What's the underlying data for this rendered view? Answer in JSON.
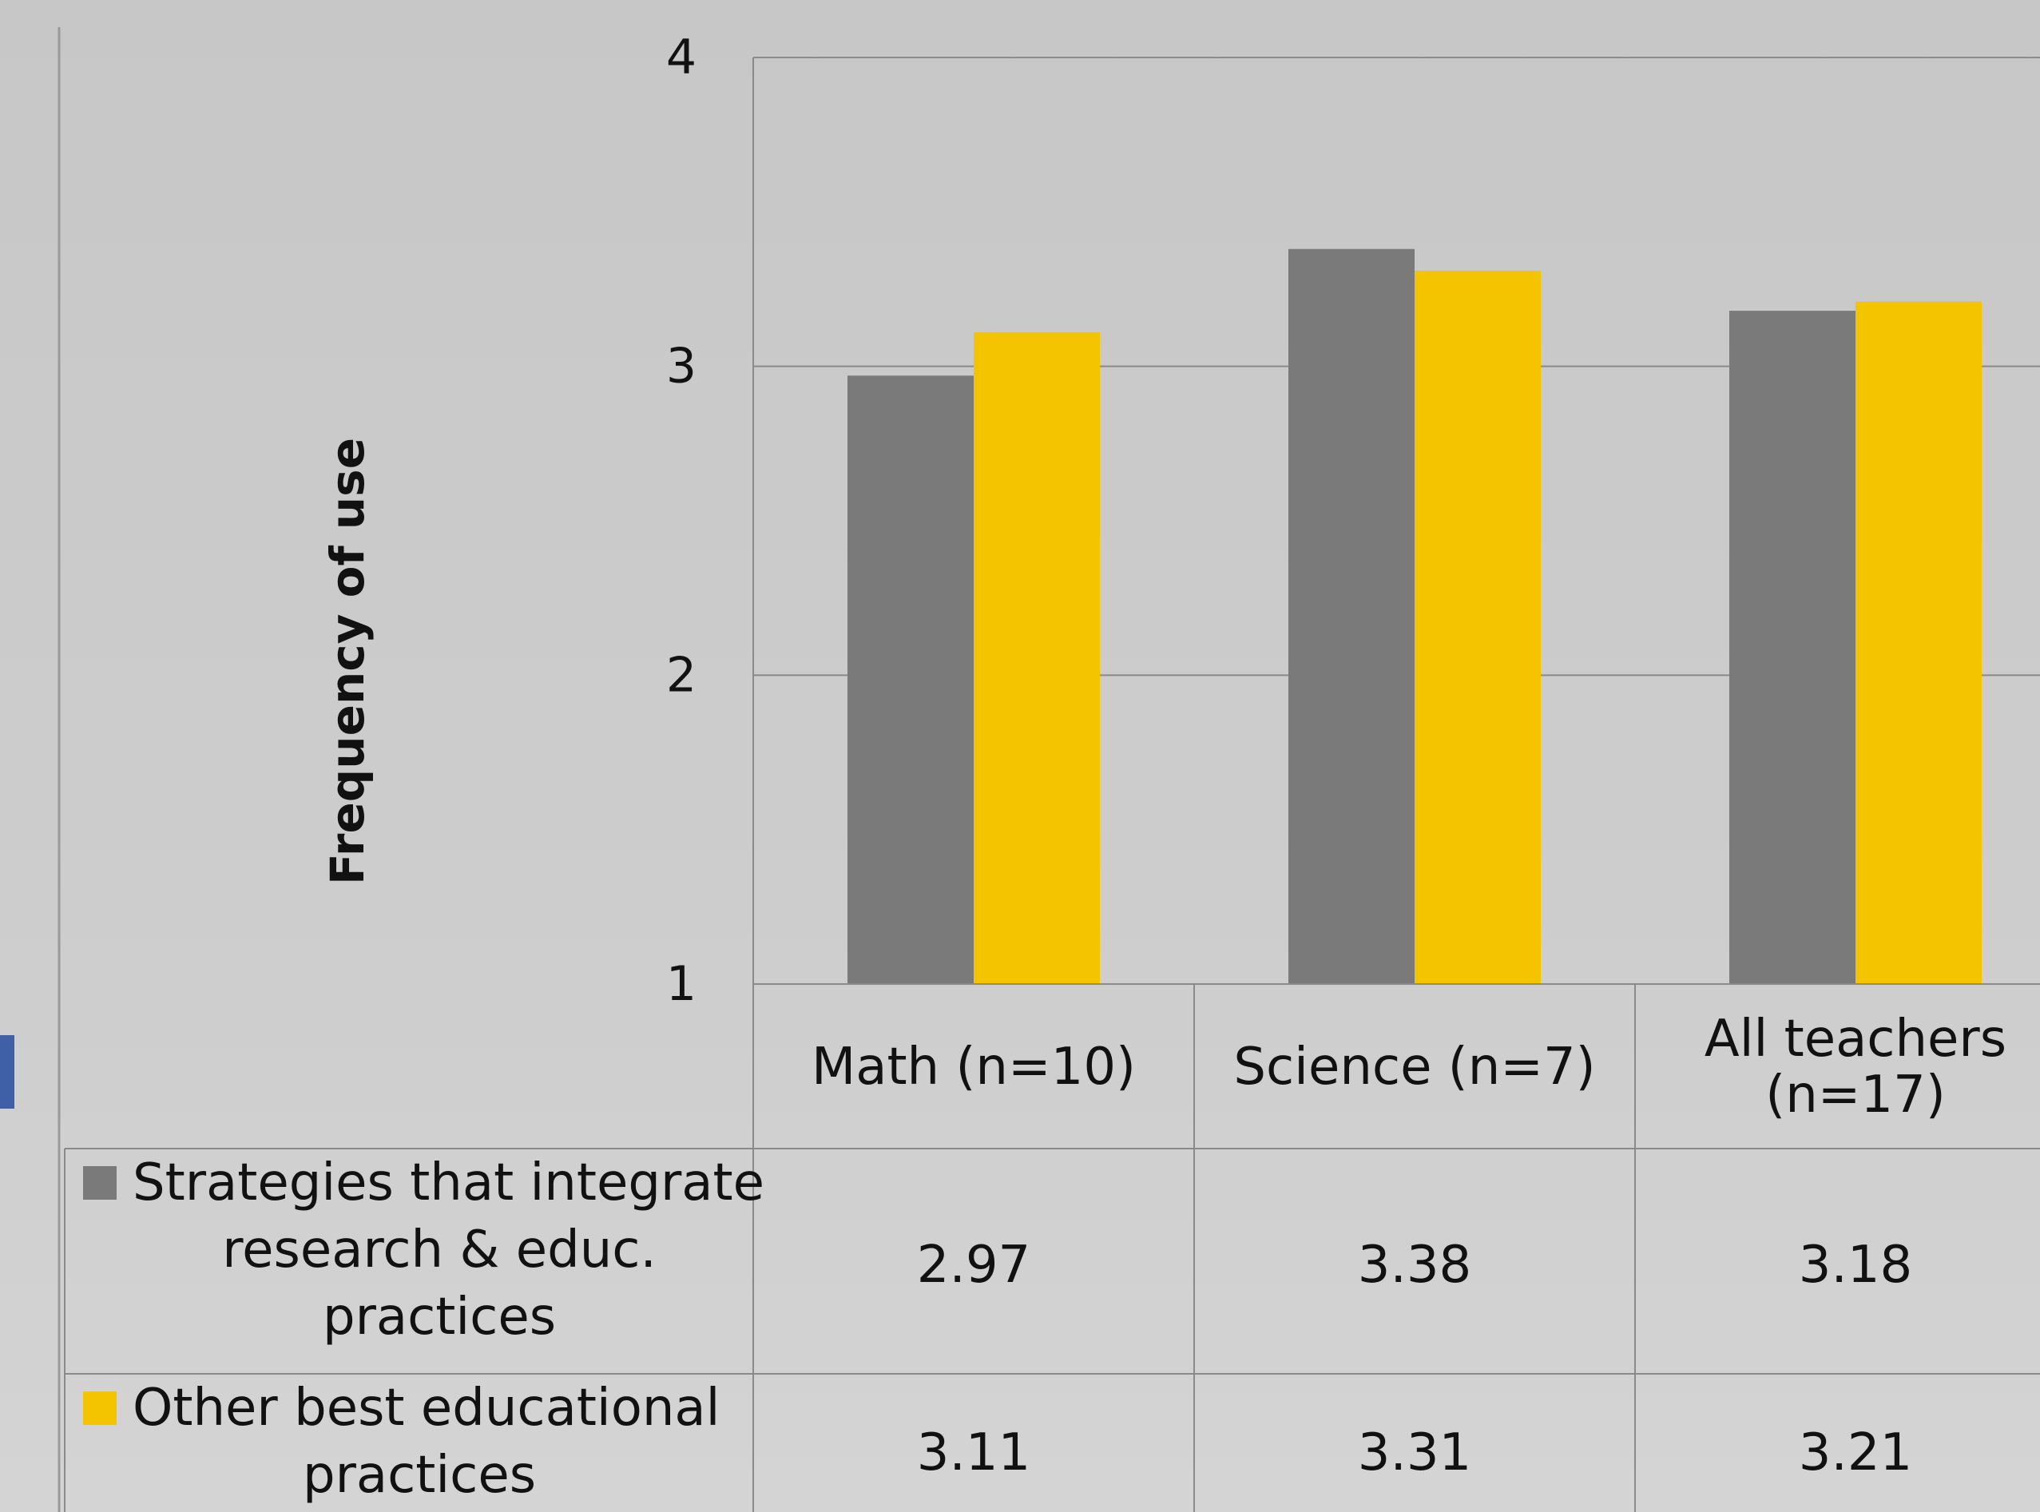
{
  "chart_data": {
    "type": "bar",
    "title": "",
    "xlabel": "",
    "ylabel": "Frequency of use",
    "ylim": [
      1,
      4
    ],
    "yticks": [
      1,
      2,
      3,
      4
    ],
    "grid": true,
    "legend": "data-table-left",
    "categories": [
      "Math (n=10)",
      "Science (n=7)",
      "All teachers (n=17)"
    ],
    "series": [
      {
        "name": "Strategies that integrate research & educ. practices",
        "color": "#7a7a7a",
        "values": [
          2.97,
          3.38,
          3.18
        ],
        "value_labels": [
          "2.97",
          "3.38",
          "3.18"
        ]
      },
      {
        "name": "Other best educational practices",
        "color": "#f5c400",
        "values": [
          3.11,
          3.31,
          3.21
        ],
        "value_labels": [
          "3.11",
          "3.31",
          "3.21"
        ]
      }
    ]
  },
  "colors": {
    "gridline": "#8a8a8a",
    "accent_tab": "#3f5fa6"
  }
}
